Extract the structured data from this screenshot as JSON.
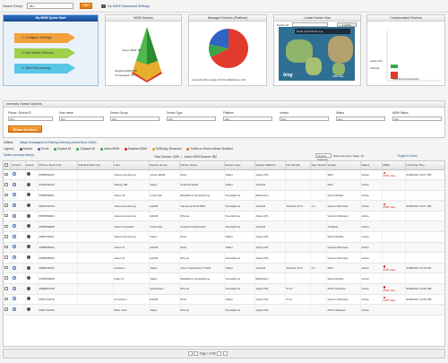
{
  "topbar": {
    "group_label": "Device Group:",
    "group_value": "ALL",
    "go_label": "Go",
    "dashboard_link": "My MDM Dashboard Settings"
  },
  "quickstart": {
    "title": "My MDM Quick Start",
    "steps": [
      "1. Configure Settings",
      "2. Add Mobile Devices",
      "3. Start Provisioning"
    ]
  },
  "panels": {
    "pyramid": {
      "title": "MDM Devices",
      "labels": [
        "Active MDM: 89",
        "Disabled MDM: 89",
        "Unmanaged: 15"
      ]
    },
    "managed": {
      "title": "Managed Devices (Platform)",
      "legend": [
        "Android (29)",
        "Apple iOS (6)",
        "Blackberry (24)"
      ],
      "colors": [
        "#e23b2d",
        "#3aa547",
        "#2f63c4"
      ]
    },
    "locate": {
      "title": "Locate Device Now",
      "device_id_label": "Device ID:",
      "locate_btn": "Locate",
      "map_tabs": "Road  Aerial  Bird's eye",
      "bing": "bing",
      "scale": "2000 miles"
    },
    "compromised": {
      "title": "Compromised Devices",
      "labels": [
        "Apple iOS",
        "Android"
      ],
      "axis": "Jailbroken  Rooted Device"
    }
  },
  "chart_data": [
    {
      "type": "pyramid",
      "title": "MDM Devices",
      "categories": [
        "Active MDM",
        "Disabled MDM",
        "Unmanaged"
      ],
      "values": [
        89,
        89,
        15
      ]
    },
    {
      "type": "pie",
      "title": "Managed Devices (Platform)",
      "categories": [
        "Android",
        "Apple iOS",
        "Blackberry"
      ],
      "values": [
        29,
        6,
        24
      ]
    },
    {
      "type": "bar",
      "title": "Compromised Devices",
      "categories": [
        "Apple iOS",
        "Android"
      ],
      "values": [
        1,
        3
      ]
    }
  ],
  "search": {
    "title": "Inventory Search Options",
    "fields": [
      {
        "label": "Phone / Device ID",
        "value": "ALL"
      },
      {
        "label": "User name",
        "value": "ALL"
      },
      {
        "label": "Device Group",
        "value": "ALL"
      },
      {
        "label": "Device Type",
        "value": "ALL"
      },
      {
        "label": "Platform",
        "value": "ALL"
      },
      {
        "label": "Vendor",
        "value": "ALL"
      },
      {
        "label": "Status",
        "value": "ALL"
      },
      {
        "label": "MDM Status",
        "value": "ALL"
      }
    ],
    "show_btn": "Show Devices"
  },
  "utilities": {
    "label": "Utilities:",
    "link": "Merge Unassigned to Existing Inventory (Action/Sync Cable)"
  },
  "legend": {
    "title": "Legend:",
    "items": [
      {
        "t": "Actions",
        "c": "#555"
      },
      {
        "t": "Enroll",
        "c": "#3a6aa8"
      },
      {
        "t": "Expand All",
        "c": "#3aa547"
      },
      {
        "t": "Collapse All",
        "c": "#3aa547"
      },
      {
        "t": "Active MDM",
        "c": "#3aa547"
      },
      {
        "t": "Disabled MDM",
        "c": "#d02020"
      },
      {
        "t": "MDM App Removed",
        "c": "#e0a020"
      },
      {
        "t": "Profile on Device Admin Disabled",
        "c": "#e07020"
      }
    ]
  },
  "controls": {
    "delete": "Delete Inventory Item(s)",
    "total": "Total Devices: 1198",
    "active": "Active MDM Devices: 982",
    "columns_label": "Choose Columns",
    "show_rec": "Show Records / Page: 15",
    "export": "Export to Excel"
  },
  "columns": [
    "",
    "Actions",
    "Enroll",
    "Phone / Device ID",
    "Self Enrolled User",
    "User",
    "Device Group",
    "Device Name",
    "Device Type",
    "Device Platform",
    "OS Version",
    "App Version",
    "Vendor",
    "Status",
    "MDM",
    "Last Ping Time"
  ],
  "rows": [
    [
      "5555551003",
      "",
      "James Armstrong",
      "Active MDM",
      "iPad",
      "Tablet",
      "Apple iOS",
      "",
      "",
      "WiFi",
      "Active",
      "MDM Stale",
      "6/28/2012 12:07 PM"
    ],
    [
      "3333332222",
      "",
      "Sidney HB",
      "Sales",
      "Android Tablet",
      "Tablet",
      "Android",
      "",
      "",
      "WiFi",
      "Active",
      "",
      ""
    ],
    [
      "5555550001",
      "",
      "Aaron W",
      "Corporate",
      "BlackBerry Smartphone",
      "Smartphone",
      "Blackberry",
      "",
      "",
      "Sprint Mobile",
      "Active",
      "",
      ""
    ],
    [
      "4664436754",
      "",
      "James Armstrong",
      "E1100",
      "Samsung SCH-I500",
      "Smartphone",
      "Android",
      "Android 4.0.4",
      "2.4",
      "Verizon Wireless",
      "Active",
      "MDM Stale",
      "6/28/2012 12:07 PM"
    ],
    [
      "5555550003",
      "",
      "James Armstrong",
      "E1100",
      "iPhone",
      "Smartphone",
      "Apple iOS",
      "",
      "",
      "Verizon Wireless",
      "Active",
      "",
      ""
    ],
    [
      "4665550008",
      "",
      "Aaron Gonzales",
      "Corporate",
      "Android Smartphone",
      "Smartphone",
      "Android",
      "",
      "",
      "T-Mobile",
      "Active",
      "",
      ""
    ],
    [
      "4685752521",
      "",
      "James Armstrong",
      "Sales",
      "iPad",
      "Tablet",
      "Apple iOS",
      "",
      "",
      "Sprint Mobile",
      "Active",
      "",
      ""
    ],
    [
      "4685555002",
      "",
      "Aaron R",
      "E1100",
      "iPad",
      "Tablet",
      "Apple iOS",
      "",
      "",
      "Verizon Wireless",
      "Active",
      "",
      ""
    ],
    [
      "4685555003",
      "",
      "Aaron R",
      "E1100",
      "iPhone",
      "Smartphone",
      "Apple iOS",
      "",
      "",
      "Verizon Wireless",
      "Active",
      "",
      ""
    ],
    [
      "4685536441",
      "",
      "Andrew I",
      "Sales",
      "Asus Transformer TF101",
      "Tablet",
      "Android",
      "Android 4.0.3",
      "2.2",
      "WiFi",
      "Active",
      "MDM Stale",
      "6/28/2012 12:13 AM"
    ],
    [
      "3445550008",
      "",
      "Ruby R",
      "Sales",
      "BlackBerry Smartphone",
      "Smartphone",
      "Blackberry",
      "",
      "",
      "Sprint Mobile",
      "Active",
      "",
      ""
    ],
    [
      "4685687328",
      "",
      "",
      "Quarantine",
      "iPhone",
      "Smartphone",
      "Apple iOS",
      "5.0.1",
      "",
      "AT&T Wireless",
      "Active",
      "MDM Stale",
      "6/28/2012 12:08 PM"
    ],
    [
      "4687714416",
      "",
      "Al Gordon",
      "E1100",
      "iPad",
      "Tablet",
      "Apple iOS",
      "5.0.1",
      "",
      "Verizon Wireless",
      "Active",
      "MDM Stale",
      "6/28/2012 12:08 PM"
    ],
    [
      "4687722164",
      "",
      "Barb Vieru",
      "Sales",
      "iPhone",
      "Smartphone",
      "Apple iOS",
      "",
      "",
      "AT&T Wireless",
      "Active",
      "",
      ""
    ]
  ],
  "pager": {
    "text": "Page 1 of 80"
  }
}
